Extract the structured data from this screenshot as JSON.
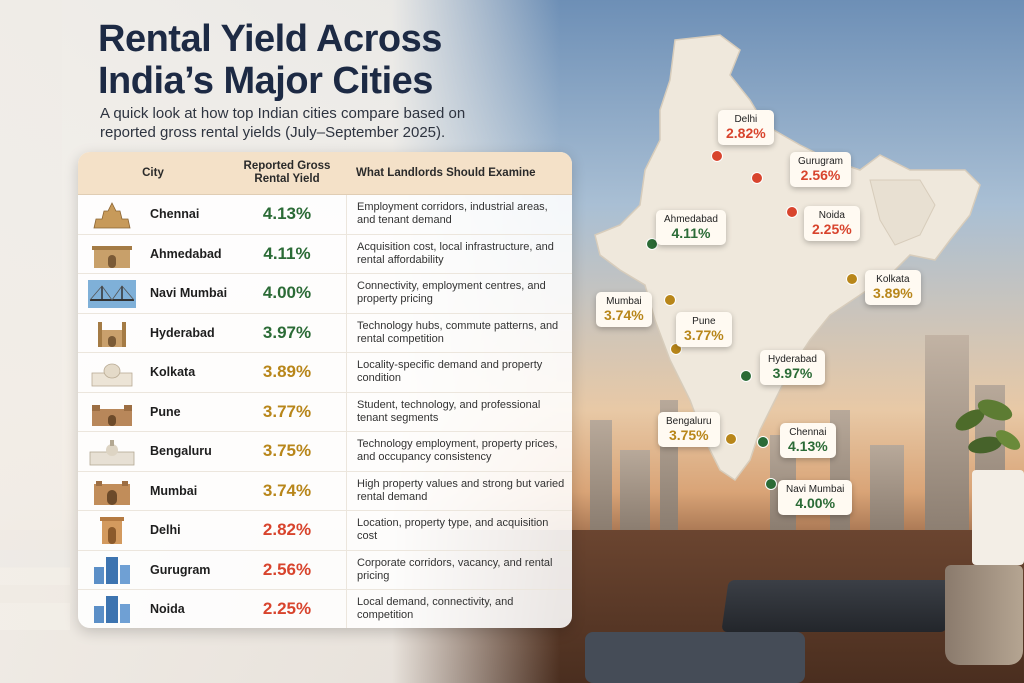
{
  "header": {
    "title": "Rental Yield Across India’s Major Cities",
    "subtitle": "A quick look at how top Indian cities compare based on reported gross rental yields (July–September 2025)."
  },
  "table": {
    "headers": {
      "city": "City",
      "yield": "Reported Gross Rental Yield",
      "examine": "What Landlords Should Examine"
    },
    "rows": [
      {
        "city": "Chennai",
        "yield": "4.13%",
        "examine": "Employment corridors, industrial areas, and tenant demand",
        "color": "#2b6b36",
        "icon": "temple-icon"
      },
      {
        "city": "Ahmedabad",
        "yield": "4.11%",
        "examine": "Acquisition cost, local infrastructure, and rental affordability",
        "color": "#2b6b36",
        "icon": "gateway-icon"
      },
      {
        "city": "Navi Mumbai",
        "yield": "4.00%",
        "examine": "Connectivity, employment centres, and property pricing",
        "color": "#2b6b36",
        "icon": "bridge-icon"
      },
      {
        "city": "Hyderabad",
        "yield": "3.97%",
        "examine": "Technology hubs, commute patterns, and rental competition",
        "color": "#2b6b36",
        "icon": "charminar-icon"
      },
      {
        "city": "Kolkata",
        "yield": "3.89%",
        "examine": "Locality-specific demand and property condition",
        "color": "#b8861a",
        "icon": "memorial-icon"
      },
      {
        "city": "Pune",
        "yield": "3.77%",
        "examine": "Student, technology, and professional tenant segments",
        "color": "#b8861a",
        "icon": "fort-icon"
      },
      {
        "city": "Bengaluru",
        "yield": "3.75%",
        "examine": "Technology employment, property prices, and occupancy consistency",
        "color": "#b8861a",
        "icon": "palace-icon"
      },
      {
        "city": "Mumbai",
        "yield": "3.74%",
        "examine": "High property values and strong but varied rental demand",
        "color": "#b8861a",
        "icon": "gateway-of-india-icon"
      },
      {
        "city": "Delhi",
        "yield": "2.82%",
        "examine": "Location, property type, and acquisition cost",
        "color": "#d8442d",
        "icon": "india-gate-icon"
      },
      {
        "city": "Gurugram",
        "yield": "2.56%",
        "examine": "Corporate corridors, vacancy, and rental pricing",
        "color": "#d8442d",
        "icon": "office-towers-icon"
      },
      {
        "city": "Noida",
        "yield": "2.25%",
        "examine": "Local demand, connectivity, and competition",
        "color": "#d8442d",
        "icon": "office-towers-icon"
      }
    ]
  },
  "map": {
    "labels": [
      {
        "city": "Delhi",
        "yield": "2.82%",
        "color": "#d8442d"
      },
      {
        "city": "Gurugram",
        "yield": "2.56%",
        "color": "#d8442d"
      },
      {
        "city": "Noida",
        "yield": "2.25%",
        "color": "#d8442d"
      },
      {
        "city": "Ahmedabad",
        "yield": "4.11%",
        "color": "#2b6b36"
      },
      {
        "city": "Kolkata",
        "yield": "3.89%",
        "color": "#b8861a"
      },
      {
        "city": "Mumbai",
        "yield": "3.74%",
        "color": "#b8861a"
      },
      {
        "city": "Pune",
        "yield": "3.77%",
        "color": "#b8861a"
      },
      {
        "city": "Hyderabad",
        "yield": "3.97%",
        "color": "#2b6b36"
      },
      {
        "city": "Bengaluru",
        "yield": "3.75%",
        "color": "#b8861a"
      },
      {
        "city": "Chennai",
        "yield": "4.13%",
        "color": "#2b6b36"
      },
      {
        "city": "Navi Mumbai",
        "yield": "4.00%",
        "color": "#2b6b36"
      }
    ]
  }
}
